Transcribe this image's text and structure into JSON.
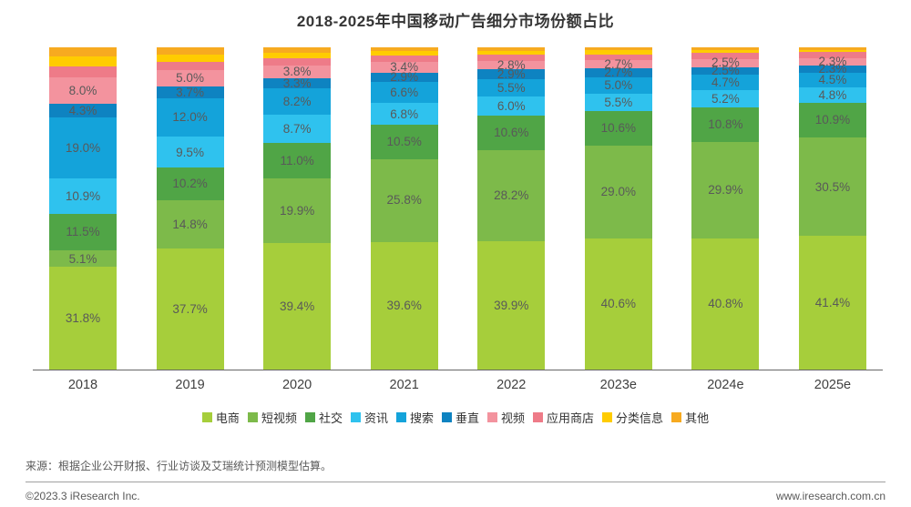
{
  "chart_data": {
    "type": "bar",
    "stacked": true,
    "title": "2018-2025年中国移动广告细分市场份额占比",
    "categories": [
      "2018",
      "2019",
      "2020",
      "2021",
      "2022",
      "2023e",
      "2024e",
      "2025e"
    ],
    "unit": "%",
    "ylim": [
      0,
      100
    ],
    "grid": false,
    "legend_position": "bottom",
    "series": [
      {
        "id": "ecommerce",
        "name": "电商",
        "color": "#a6ce3b",
        "show_labels": true,
        "values": [
          31.8,
          37.7,
          39.4,
          39.6,
          39.9,
          40.6,
          40.8,
          41.4
        ]
      },
      {
        "id": "short-video",
        "name": "短视频",
        "color": "#7dba4a",
        "show_labels": true,
        "values": [
          5.1,
          14.8,
          19.9,
          25.8,
          28.2,
          29.0,
          29.9,
          30.5
        ]
      },
      {
        "id": "social",
        "name": "社交",
        "color": "#50a546",
        "show_labels": true,
        "values": [
          11.5,
          10.2,
          11.0,
          10.5,
          10.6,
          10.6,
          10.8,
          10.9
        ]
      },
      {
        "id": "news-feed",
        "name": "资讯",
        "color": "#2fc2ee",
        "show_labels": true,
        "values": [
          10.9,
          9.5,
          8.7,
          6.8,
          6.0,
          5.5,
          5.2,
          4.8
        ]
      },
      {
        "id": "search",
        "name": "搜索",
        "color": "#14a3da",
        "show_labels": true,
        "values": [
          19.0,
          12.0,
          8.2,
          6.6,
          5.5,
          5.0,
          4.7,
          4.5
        ]
      },
      {
        "id": "vertical",
        "name": "垂直",
        "color": "#0e83c1",
        "show_labels": true,
        "values": [
          4.3,
          3.7,
          3.3,
          2.9,
          2.9,
          2.7,
          2.5,
          2.3
        ]
      },
      {
        "id": "video",
        "name": "视频",
        "color": "#f3939e",
        "show_labels": true,
        "values": [
          8.0,
          5.0,
          3.8,
          3.4,
          2.8,
          2.7,
          2.5,
          2.3
        ]
      },
      {
        "id": "app-store",
        "name": "应用商店",
        "color": "#ee7b88",
        "show_labels": false,
        "values": [
          3.6,
          2.6,
          2.3,
          1.9,
          1.9,
          1.8,
          1.8,
          1.8
        ]
      },
      {
        "id": "classified-info",
        "name": "分类信息",
        "color": "#ffcc00",
        "show_labels": false,
        "values": [
          3.0,
          2.3,
          1.8,
          1.4,
          1.2,
          1.2,
          1.0,
          0.8
        ]
      },
      {
        "id": "other",
        "name": "其他",
        "color": "#f7aa20",
        "show_labels": false,
        "values": [
          2.8,
          2.2,
          1.6,
          1.1,
          1.0,
          0.9,
          0.8,
          0.7
        ]
      }
    ]
  },
  "footer": {
    "source": "来源：根据企业公开财报、行业访谈及艾瑞统计预测模型估算。",
    "copyright": "©2023.3 iResearch Inc.",
    "website": "www.iresearch.com.cn"
  }
}
